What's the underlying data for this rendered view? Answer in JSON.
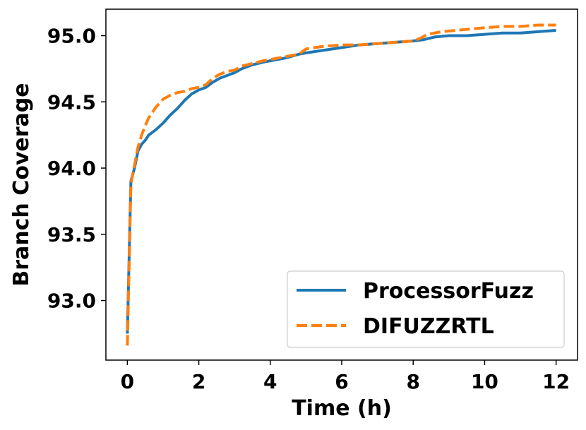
{
  "chart_data": {
    "type": "line",
    "xlabel": "Time (h)",
    "ylabel": "Branch Coverage",
    "xlim": [
      -0.6,
      12.6
    ],
    "ylim": [
      92.55,
      95.2
    ],
    "xticks": [
      0,
      2,
      4,
      6,
      8,
      10,
      12
    ],
    "xtick_labels": [
      "0",
      "2",
      "4",
      "6",
      "8",
      "10",
      "12"
    ],
    "yticks": [
      93.0,
      93.5,
      94.0,
      94.5,
      95.0
    ],
    "ytick_labels": [
      "93.0",
      "93.5",
      "94.0",
      "94.5",
      "95.0"
    ],
    "grid": false,
    "legend_position": "lower right",
    "series": [
      {
        "name": "ProcessorFuzz",
        "color": "#1f77b4",
        "style": "solid",
        "x": [
          0,
          0.1,
          0.2,
          0.3,
          0.4,
          0.5,
          0.6,
          0.8,
          1.0,
          1.2,
          1.4,
          1.6,
          1.8,
          2.0,
          2.2,
          2.4,
          2.6,
          2.8,
          3.0,
          3.2,
          3.5,
          3.8,
          4.0,
          4.4,
          4.8,
          5.0,
          5.5,
          6.0,
          6.5,
          7.0,
          7.5,
          8.0,
          8.3,
          8.6,
          9.0,
          9.5,
          10.0,
          10.5,
          11.0,
          11.5,
          12.0
        ],
        "y": [
          92.75,
          93.9,
          94.0,
          94.13,
          94.18,
          94.21,
          94.25,
          94.29,
          94.34,
          94.4,
          94.45,
          94.51,
          94.56,
          94.59,
          94.61,
          94.65,
          94.68,
          94.7,
          94.72,
          94.75,
          94.78,
          94.8,
          94.81,
          94.83,
          94.86,
          94.87,
          94.89,
          94.91,
          94.93,
          94.94,
          94.95,
          94.96,
          94.97,
          94.99,
          95.0,
          95.0,
          95.01,
          95.02,
          95.02,
          95.03,
          95.04
        ]
      },
      {
        "name": "DIFUZZRTL",
        "color": "#ff7f0e",
        "style": "dashed",
        "x": [
          0,
          0.1,
          0.2,
          0.3,
          0.4,
          0.5,
          0.6,
          0.8,
          1.0,
          1.2,
          1.4,
          1.6,
          1.8,
          2.0,
          2.2,
          2.4,
          2.6,
          2.8,
          3.0,
          3.2,
          3.5,
          3.8,
          4.0,
          4.4,
          4.8,
          5.0,
          5.5,
          6.0,
          6.5,
          7.0,
          7.5,
          8.0,
          8.2,
          8.4,
          8.8,
          9.2,
          9.6,
          10.0,
          10.5,
          11.0,
          11.5,
          12.0
        ],
        "y": [
          92.66,
          93.88,
          94.02,
          94.16,
          94.25,
          94.32,
          94.38,
          94.46,
          94.52,
          94.55,
          94.57,
          94.58,
          94.6,
          94.61,
          94.63,
          94.68,
          94.71,
          94.73,
          94.74,
          94.77,
          94.79,
          94.81,
          94.82,
          94.84,
          94.86,
          94.9,
          94.92,
          94.93,
          94.93,
          94.94,
          94.95,
          94.96,
          94.98,
          95.01,
          95.03,
          95.04,
          95.05,
          95.06,
          95.07,
          95.07,
          95.08,
          95.08
        ]
      }
    ]
  }
}
